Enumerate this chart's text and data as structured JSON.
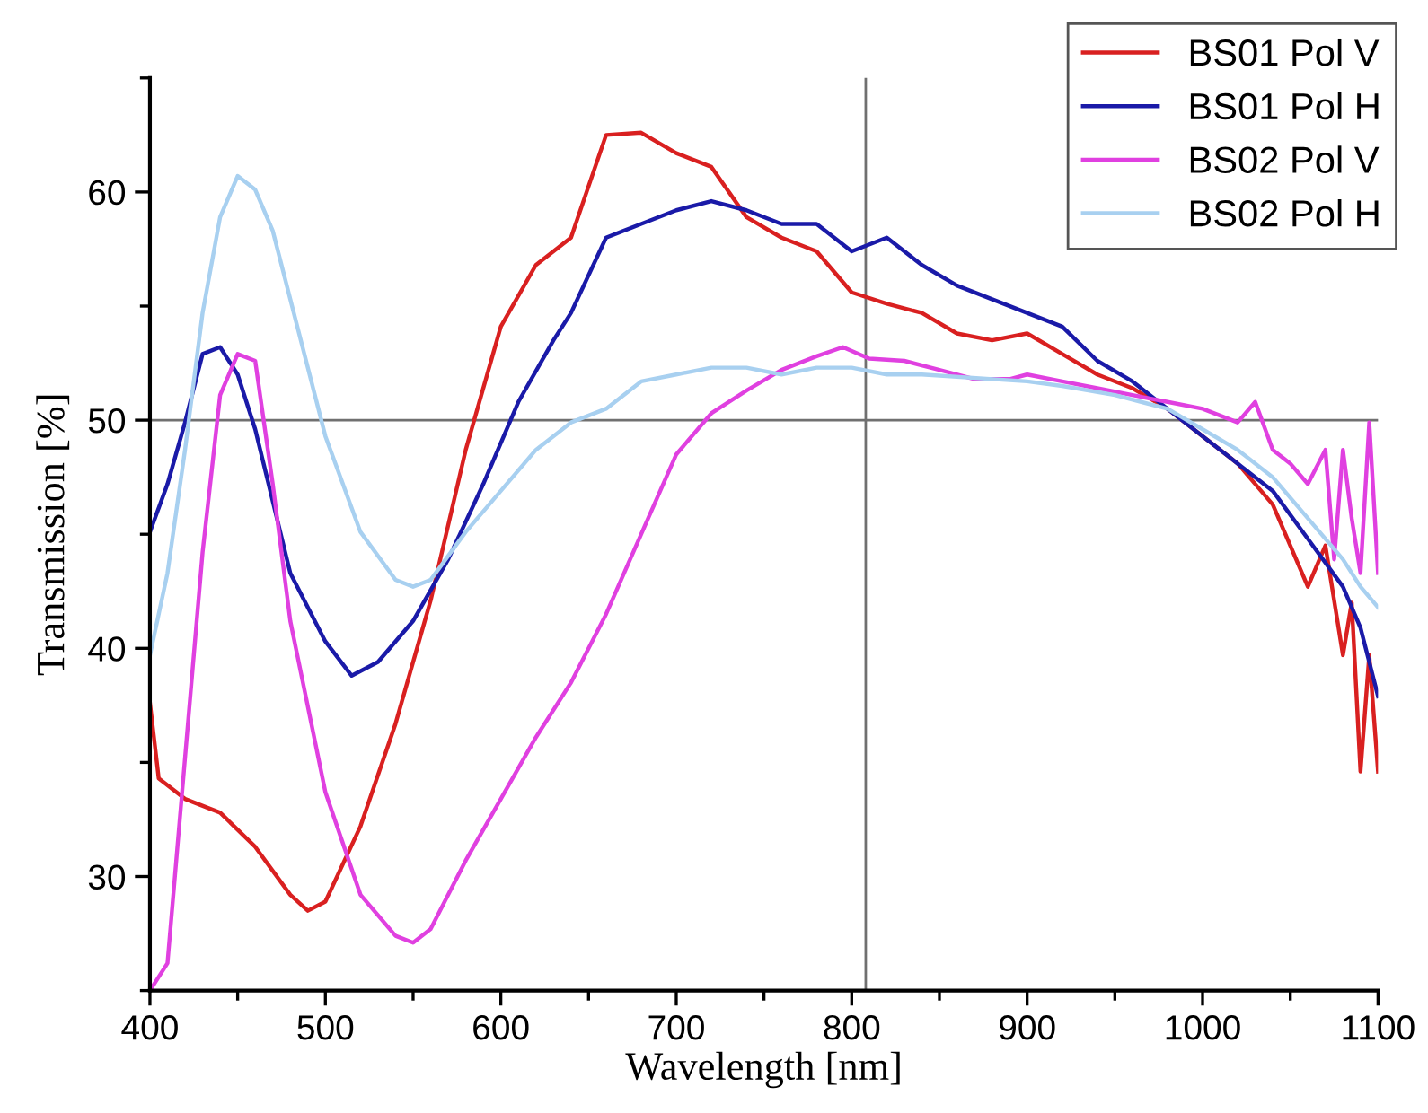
{
  "chart_data": {
    "type": "line",
    "xlabel": "Wavelength [nm]",
    "ylabel": "Transmission [%]",
    "xlim": [
      400,
      1100
    ],
    "ylim": [
      25,
      65
    ],
    "xticks": [
      400,
      500,
      600,
      700,
      800,
      900,
      1000,
      1100
    ],
    "yticks": [
      30,
      40,
      50,
      60
    ],
    "grid": false,
    "legend": "top right",
    "marker": "none",
    "line_style": "solid",
    "ref_lines": [
      {
        "axis": "y",
        "value": 50,
        "color": "#707070"
      },
      {
        "axis": "x",
        "value": 808,
        "color": "#707070"
      }
    ],
    "series": [
      {
        "name": "BS01 Pol V",
        "color": "#d92020",
        "x": [
          400,
          405,
          420,
          440,
          460,
          480,
          490,
          500,
          520,
          540,
          560,
          580,
          600,
          620,
          640,
          660,
          680,
          700,
          720,
          740,
          760,
          780,
          800,
          820,
          840,
          860,
          880,
          900,
          920,
          940,
          960,
          980,
          1000,
          1020,
          1040,
          1060,
          1070,
          1080,
          1085,
          1090,
          1095,
          1100
        ],
        "values": [
          37.6,
          34.3,
          33.4,
          32.8,
          31.3,
          29.2,
          28.5,
          28.9,
          32.2,
          36.7,
          42.1,
          48.7,
          54.1,
          56.8,
          58,
          62.5,
          62.6,
          61.7,
          61.1,
          58.9,
          58,
          57.4,
          55.6,
          55.1,
          54.7,
          53.8,
          53.5,
          53.8,
          52.9,
          52,
          51.4,
          50.5,
          49.3,
          48.1,
          46.3,
          42.7,
          44.5,
          39.7,
          42,
          34.6,
          39.7,
          34.6
        ]
      },
      {
        "name": "BS01 Pol H",
        "color": "#1a1aa8",
        "x": [
          400,
          410,
          420,
          430,
          440,
          450,
          460,
          480,
          500,
          515,
          530,
          550,
          570,
          590,
          610,
          630,
          640,
          660,
          680,
          700,
          720,
          740,
          760,
          780,
          800,
          820,
          840,
          860,
          880,
          900,
          920,
          940,
          960,
          980,
          1000,
          1020,
          1040,
          1060,
          1080,
          1090,
          1100
        ],
        "values": [
          45.1,
          47.2,
          49.9,
          52.9,
          53.2,
          52,
          49.6,
          43.3,
          40.3,
          38.8,
          39.4,
          41.2,
          43.9,
          47.2,
          50.8,
          53.5,
          54.7,
          58,
          58.6,
          59.2,
          59.6,
          59.2,
          58.6,
          58.6,
          57.4,
          58,
          56.8,
          55.9,
          55.3,
          54.7,
          54.1,
          52.6,
          51.7,
          50.5,
          49.3,
          48.1,
          46.9,
          44.8,
          42.7,
          40.9,
          37.9
        ]
      },
      {
        "name": "BS02 Pol V",
        "color": "#e040e0",
        "x": [
          400,
          410,
          420,
          430,
          440,
          450,
          460,
          470,
          480,
          500,
          520,
          540,
          550,
          560,
          580,
          600,
          620,
          640,
          660,
          680,
          700,
          720,
          740,
          760,
          780,
          795,
          810,
          830,
          850,
          870,
          890,
          900,
          920,
          940,
          960,
          980,
          1000,
          1020,
          1030,
          1040,
          1050,
          1060,
          1070,
          1075,
          1080,
          1085,
          1090,
          1095,
          1100
        ],
        "values": [
          25,
          26.2,
          35.2,
          44.2,
          51.1,
          52.9,
          52.6,
          47.2,
          41.2,
          33.7,
          29.2,
          27.4,
          27.1,
          27.7,
          30.7,
          33.4,
          36.1,
          38.5,
          41.5,
          45,
          48.5,
          50.3,
          51.3,
          52.2,
          52.8,
          53.2,
          52.7,
          52.6,
          52.2,
          51.8,
          51.8,
          52,
          51.7,
          51.4,
          51.1,
          50.8,
          50.5,
          49.9,
          50.8,
          48.7,
          48.1,
          47.2,
          48.7,
          43.9,
          48.7,
          45.7,
          43.3,
          49.9,
          43.3
        ]
      },
      {
        "name": "BS02 Pol H",
        "color": "#a8d0f0",
        "x": [
          400,
          410,
          420,
          430,
          440,
          450,
          460,
          470,
          480,
          490,
          500,
          520,
          540,
          550,
          560,
          580,
          600,
          620,
          640,
          660,
          680,
          700,
          720,
          740,
          760,
          780,
          800,
          820,
          840,
          900,
          920,
          950,
          980,
          1000,
          1020,
          1040,
          1060,
          1080,
          1090,
          1100
        ],
        "values": [
          39.7,
          43.3,
          48.7,
          54.7,
          58.9,
          60.7,
          60.1,
          58.3,
          55.3,
          52.3,
          49.3,
          45.1,
          43,
          42.7,
          43,
          45.1,
          46.9,
          48.7,
          49.9,
          50.5,
          51.7,
          52,
          52.3,
          52.3,
          52,
          52.3,
          52.3,
          52,
          52,
          51.7,
          51.5,
          51.1,
          50.5,
          49.6,
          48.7,
          47.5,
          45.7,
          43.9,
          42.7,
          41.8
        ]
      }
    ]
  }
}
